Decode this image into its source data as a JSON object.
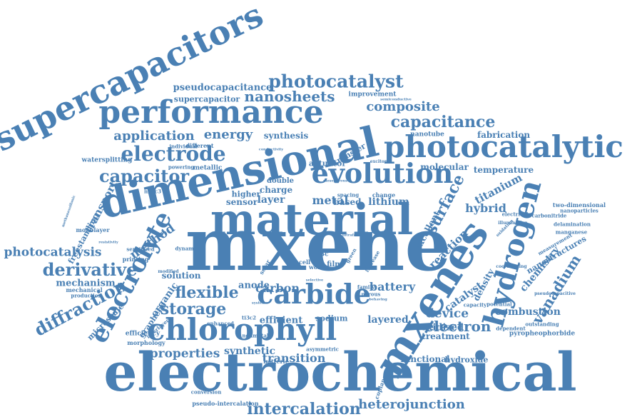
{
  "color": "#4a80b4",
  "words": [
    {
      "text": "electrochemical"
    },
    {
      "text": "mxene"
    },
    {
      "text": "dimensional"
    },
    {
      "text": "material"
    },
    {
      "text": "mxenes"
    },
    {
      "text": "supercapacitors"
    },
    {
      "text": "performance"
    },
    {
      "text": "photocatalytic"
    },
    {
      "text": "chlorophyll"
    },
    {
      "text": "hydrogen"
    },
    {
      "text": "carbide"
    },
    {
      "text": "evolution"
    },
    {
      "text": "electrolyte"
    },
    {
      "text": "intercalation"
    },
    {
      "text": "electrode"
    },
    {
      "text": "heterojunction"
    },
    {
      "text": "photocatalyst"
    },
    {
      "text": "capacitor"
    },
    {
      "text": "derivative"
    },
    {
      "text": "diffraction"
    },
    {
      "text": "flexible"
    },
    {
      "text": "storage"
    },
    {
      "text": "capacitance"
    },
    {
      "text": "photocatalysis"
    },
    {
      "text": "nanosheets"
    },
    {
      "text": "electron"
    },
    {
      "text": "surface"
    },
    {
      "text": "vanadium"
    },
    {
      "text": "composite"
    },
    {
      "text": "application"
    },
    {
      "text": "energy"
    },
    {
      "text": "pseudocapacitance"
    },
    {
      "text": "properties"
    },
    {
      "text": "device"
    },
    {
      "text": "method"
    },
    {
      "text": "transition"
    },
    {
      "text": "synthetic"
    },
    {
      "text": "carbon"
    },
    {
      "text": "battery"
    },
    {
      "text": "titanium"
    },
    {
      "text": "reaction"
    },
    {
      "text": "chemistry"
    },
    {
      "text": "combustion"
    },
    {
      "text": "catalyst"
    },
    {
      "text": "hybrid"
    },
    {
      "text": "transport"
    },
    {
      "text": "supercapacitor"
    },
    {
      "text": "layer"
    },
    {
      "text": "metal"
    },
    {
      "text": "lithium"
    },
    {
      "text": "mechanism"
    },
    {
      "text": "layered"
    },
    {
      "text": "oxidized"
    },
    {
      "text": "treatment"
    },
    {
      "text": "functional"
    },
    {
      "text": "hydroxide"
    },
    {
      "text": "efficient"
    },
    {
      "text": "sodium"
    },
    {
      "text": "anode"
    },
    {
      "text": "organic"
    },
    {
      "text": "solution"
    },
    {
      "text": "temperature"
    },
    {
      "text": "molecular"
    },
    {
      "text": "synthesis"
    },
    {
      "text": "fabrication"
    },
    {
      "text": "excellent"
    },
    {
      "text": "density"
    },
    {
      "text": "nanostructures"
    },
    {
      "text": "microscale"
    },
    {
      "text": "graphene"
    },
    {
      "text": "freestanding"
    },
    {
      "text": "based"
    },
    {
      "text": "sensor"
    },
    {
      "text": "charge"
    },
    {
      "text": "double"
    },
    {
      "text": "higher"
    },
    {
      "text": "actuator"
    },
    {
      "text": "transfer"
    },
    {
      "text": "nanotube"
    },
    {
      "text": "improvement"
    },
    {
      "text": "metallic"
    },
    {
      "text": "different"
    },
    {
      "text": "individual"
    },
    {
      "text": "watersplitting"
    },
    {
      "text": "powering"
    },
    {
      "text": "monolayer"
    },
    {
      "text": "sensitized"
    },
    {
      "text": "printing"
    },
    {
      "text": "efficiency"
    },
    {
      "text": "morphology"
    },
    {
      "text": "mechanical"
    },
    {
      "text": "production"
    },
    {
      "text": "interlayer"
    },
    {
      "text": "enhanced"
    },
    {
      "text": "modified"
    },
    {
      "text": "dynamic"
    },
    {
      "text": "two-dimensional"
    },
    {
      "text": "nanoparticles"
    },
    {
      "text": "carbonitride"
    },
    {
      "text": "delamination"
    },
    {
      "text": "manganese"
    },
    {
      "text": "measurement"
    },
    {
      "text": "coordinating"
    },
    {
      "text": "electrical"
    },
    {
      "text": "illumination"
    },
    {
      "text": "oxidation"
    },
    {
      "text": "capacity"
    },
    {
      "text": "potential"
    },
    {
      "text": "dependent"
    },
    {
      "text": "outstanding"
    },
    {
      "text": "pyropheophorbide"
    },
    {
      "text": "pseudocapacitive"
    },
    {
      "text": "change"
    },
    {
      "text": "spacing"
    },
    {
      "text": "work"
    },
    {
      "text": "family"
    },
    {
      "text": "porous"
    },
    {
      "text": "film"
    },
    {
      "text": "cell"
    },
    {
      "text": "increase"
    },
    {
      "text": "solar"
    },
    {
      "text": "green"
    },
    {
      "text": "batterie"
    },
    {
      "text": "nonmetal"
    },
    {
      "text": "asymmetric"
    },
    {
      "text": "coplanar"
    },
    {
      "text": "conversion"
    },
    {
      "text": "pseudo-intercalation"
    },
    {
      "text": "ti3c"
    },
    {
      "text": "ti3c2"
    },
    {
      "text": "nb4c3"
    },
    {
      "text": "excitonic"
    },
    {
      "text": "semiconductive"
    },
    {
      "text": "resistivity"
    },
    {
      "text": "methanesulfonic"
    },
    {
      "text": "conductivity"
    },
    {
      "text": "behaving"
    },
    {
      "text": "systems"
    },
    {
      "text": "ultrafast"
    },
    {
      "text": "mesoporous"
    },
    {
      "text": "selective"
    }
  ]
}
